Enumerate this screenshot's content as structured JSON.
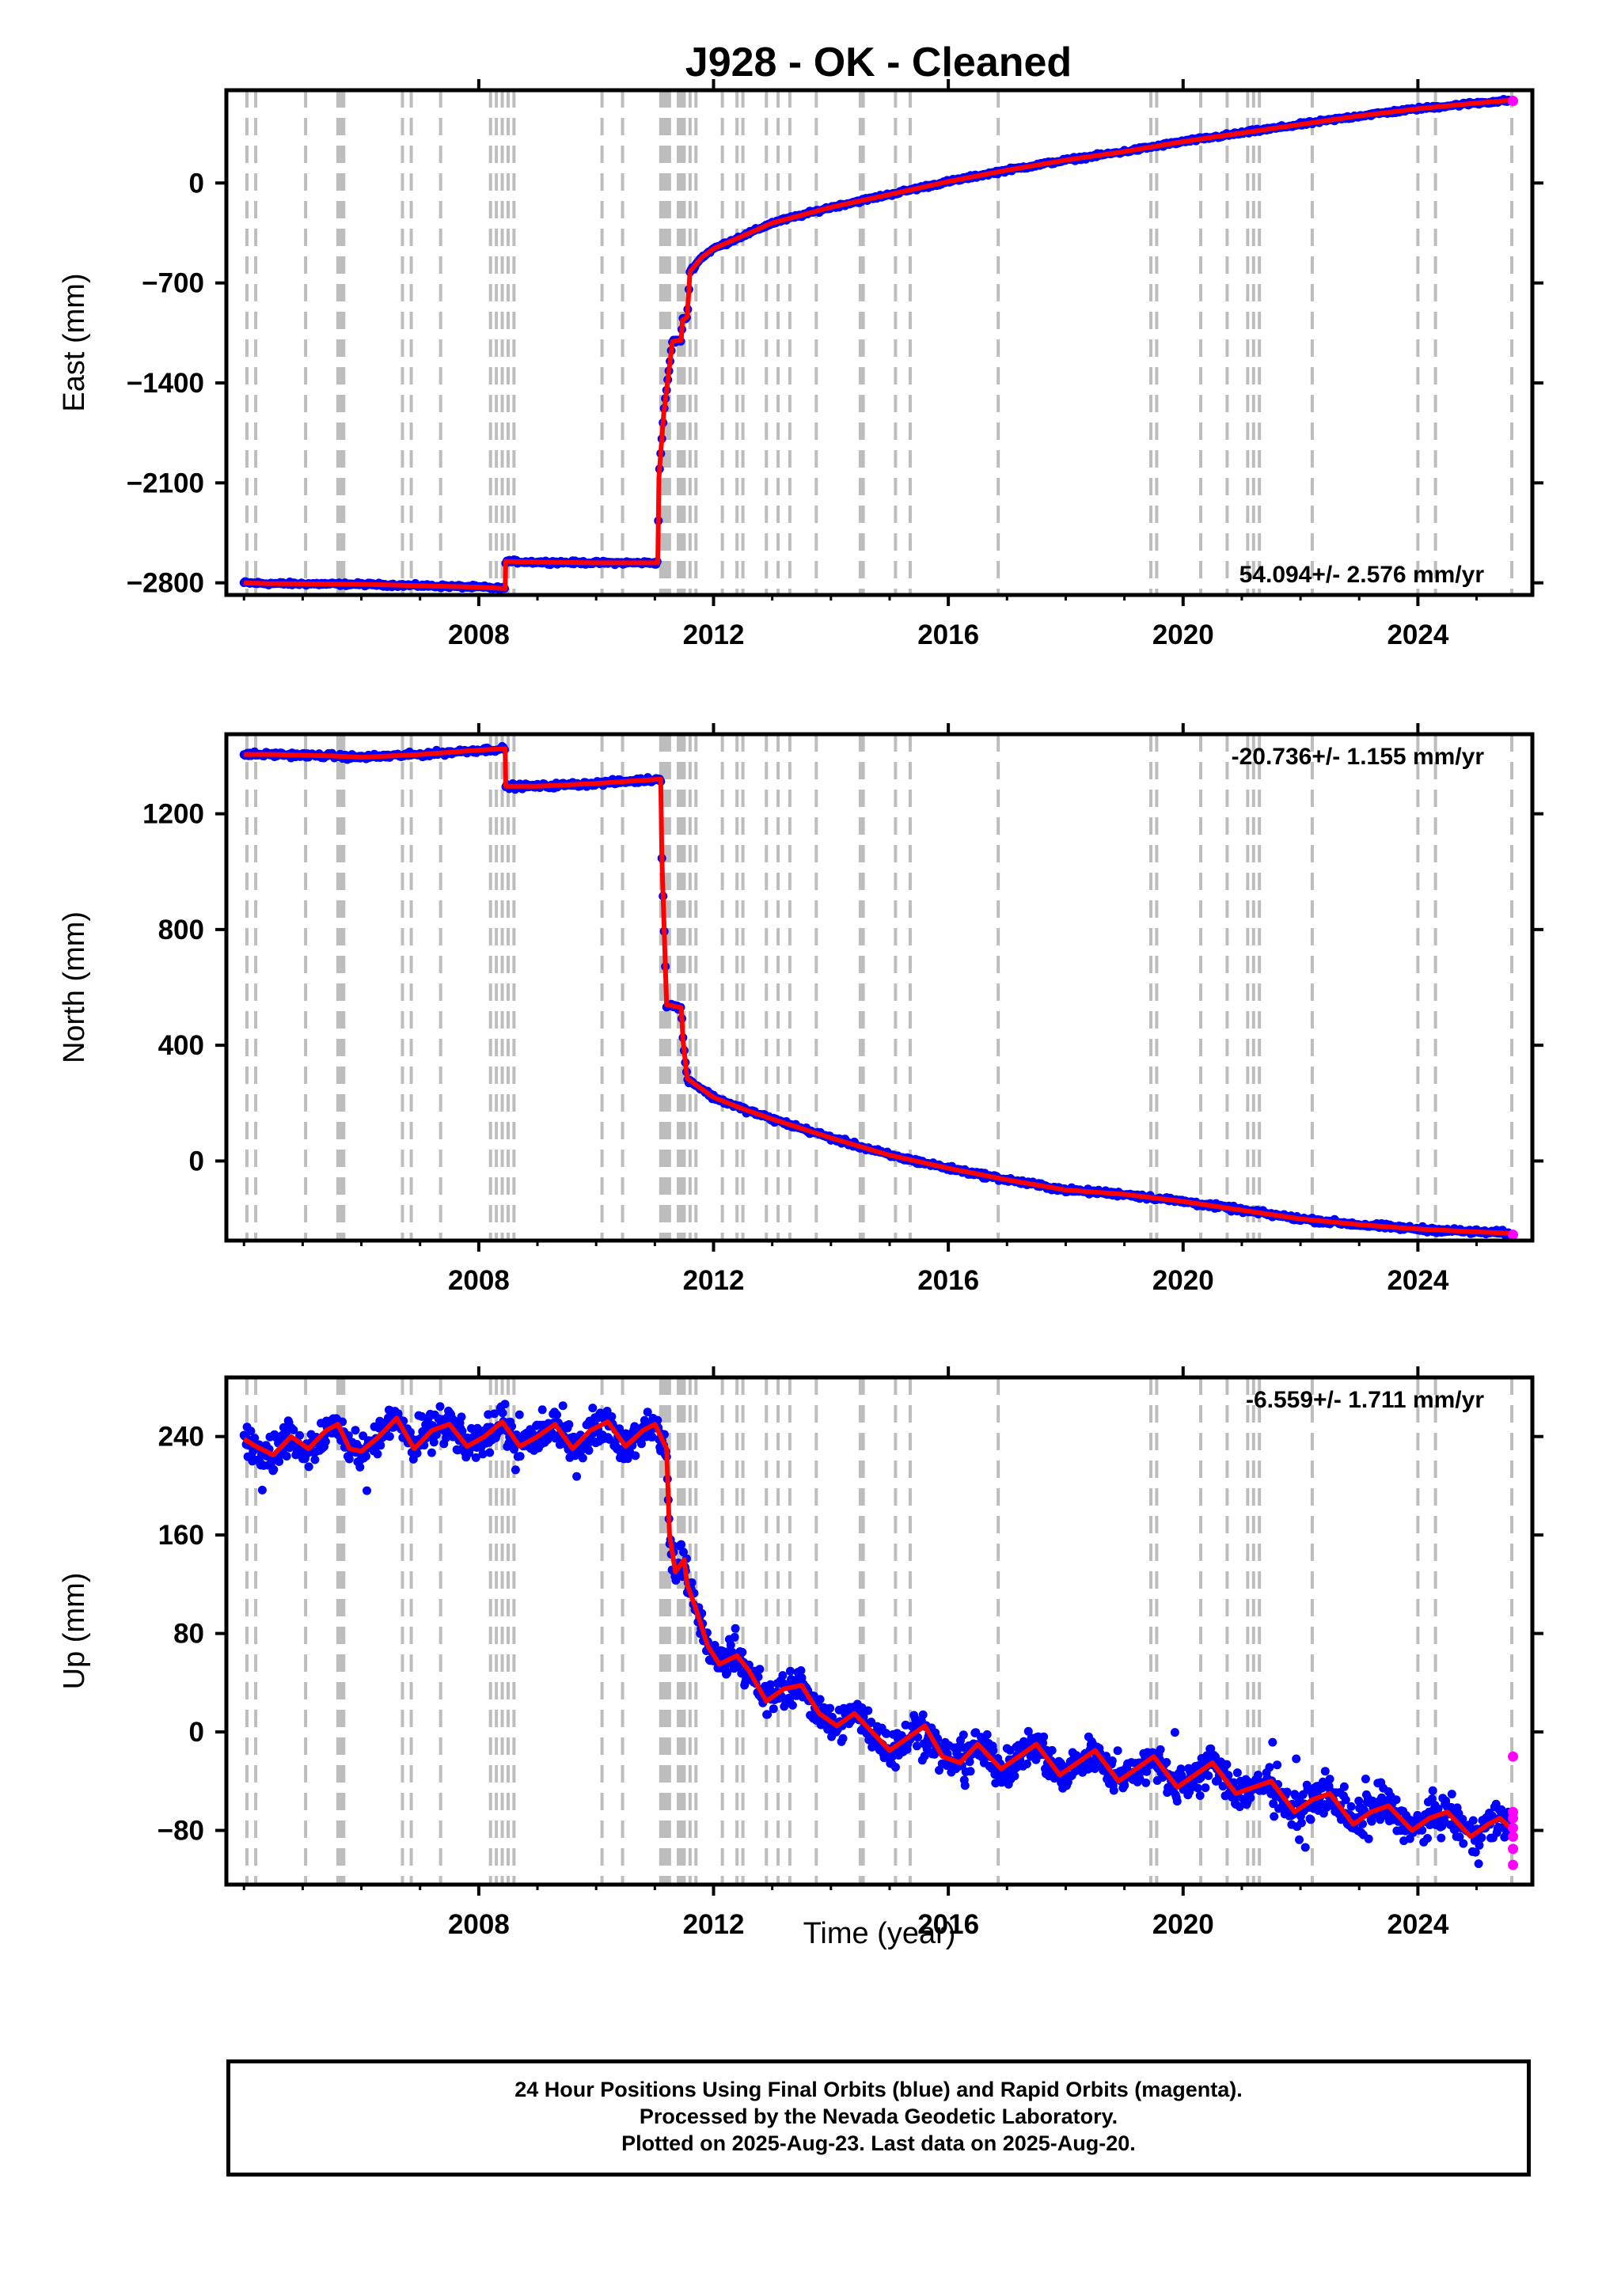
{
  "title": "J928  - OK - Cleaned",
  "colors": {
    "final": "#0000ff",
    "rapid": "#ff00ff",
    "model": "#ff0000",
    "event_lines": "#bdbdbd",
    "axis": "#000000"
  },
  "x_axis": {
    "label": "Time (year)",
    "ticks": [
      2008,
      2012,
      2016,
      2020,
      2024
    ],
    "range": [
      2003.7,
      2025.95
    ]
  },
  "event_lines": [
    2004.05,
    2004.2,
    2005.05,
    2005.6,
    2005.65,
    2005.7,
    2006.7,
    2006.85,
    2007.35,
    2008.2,
    2008.3,
    2008.4,
    2008.5,
    2008.6,
    2010.1,
    2010.45,
    2011.1,
    2011.15,
    2011.2,
    2011.25,
    2011.4,
    2011.45,
    2011.5,
    2011.6,
    2011.7,
    2012.15,
    2012.4,
    2012.5,
    2012.9,
    2013.1,
    2013.3,
    2013.75,
    2014.5,
    2014.55,
    2015.1,
    2015.35,
    2016.85,
    2019.45,
    2019.55,
    2020.3,
    2020.75,
    2021.1,
    2021.2,
    2021.3,
    2022.2,
    2024.0,
    2024.3,
    2025.6
  ],
  "footer": {
    "line1": "24 Hour Positions Using Final Orbits (blue) and Rapid Orbits (magenta).",
    "line2": "Processed by the Nevada Geodetic Laboratory.",
    "line3": "Plotted on 2025-Aug-23. Last data on 2025-Aug-20."
  },
  "chart_data": [
    {
      "type": "scatter",
      "ylabel": "East (mm)",
      "yticks": [
        -2800,
        -2100,
        -1400,
        -700,
        0
      ],
      "ylim": [
        -2885,
        650
      ],
      "rate_label": "54.094+/- 2.576 mm/yr",
      "model_points": [
        [
          2004.0,
          -2800
        ],
        [
          2004.4,
          -2805
        ],
        [
          2006.0,
          -2810
        ],
        [
          2008.0,
          -2830
        ],
        [
          2008.45,
          -2840
        ],
        [
          2008.46,
          -2650
        ],
        [
          2009.0,
          -2655
        ],
        [
          2010.0,
          -2660
        ],
        [
          2011.05,
          -2660
        ],
        [
          2011.07,
          -2060
        ],
        [
          2011.15,
          -1620
        ],
        [
          2011.3,
          -1110
        ],
        [
          2011.45,
          -1100
        ],
        [
          2011.47,
          -960
        ],
        [
          2011.55,
          -940
        ],
        [
          2011.6,
          -620
        ],
        [
          2011.8,
          -520
        ],
        [
          2012.0,
          -460
        ],
        [
          2012.5,
          -370
        ],
        [
          2013.0,
          -280
        ],
        [
          2014.0,
          -170
        ],
        [
          2015.0,
          -80
        ],
        [
          2016.0,
          10
        ],
        [
          2017.0,
          90
        ],
        [
          2018.0,
          160
        ],
        [
          2019.0,
          220
        ],
        [
          2020.0,
          290
        ],
        [
          2021.0,
          350
        ],
        [
          2022.0,
          410
        ],
        [
          2023.0,
          470
        ],
        [
          2024.0,
          520
        ],
        [
          2025.0,
          560
        ],
        [
          2025.62,
          580
        ]
      ],
      "noise_mm": 8,
      "rapid_points": [
        [
          2025.62,
          575
        ]
      ]
    },
    {
      "type": "scatter",
      "ylabel": "North (mm)",
      "yticks": [
        0,
        400,
        800,
        1200
      ],
      "ylim": [
        -275,
        1475
      ],
      "rate_label": "-20.736+/- 1.155 mm/yr",
      "model_points": [
        [
          2004.0,
          1405
        ],
        [
          2004.5,
          1405
        ],
        [
          2005.5,
          1400
        ],
        [
          2006.0,
          1395
        ],
        [
          2007.0,
          1405
        ],
        [
          2008.0,
          1420
        ],
        [
          2008.45,
          1425
        ],
        [
          2008.46,
          1295
        ],
        [
          2009.0,
          1295
        ],
        [
          2010.0,
          1305
        ],
        [
          2011.1,
          1320
        ],
        [
          2011.12,
          1050
        ],
        [
          2011.2,
          540
        ],
        [
          2011.45,
          530
        ],
        [
          2011.48,
          420
        ],
        [
          2011.55,
          285
        ],
        [
          2012.0,
          220
        ],
        [
          2012.5,
          180
        ],
        [
          2013.0,
          145
        ],
        [
          2014.0,
          80
        ],
        [
          2015.0,
          20
        ],
        [
          2016.0,
          -25
        ],
        [
          2017.0,
          -65
        ],
        [
          2018.0,
          -100
        ],
        [
          2019.0,
          -115
        ],
        [
          2020.0,
          -140
        ],
        [
          2021.0,
          -170
        ],
        [
          2022.0,
          -200
        ],
        [
          2023.0,
          -220
        ],
        [
          2024.0,
          -235
        ],
        [
          2025.0,
          -245
        ],
        [
          2025.62,
          -250
        ]
      ],
      "noise_mm": 6,
      "rapid_points": [
        [
          2025.62,
          -255
        ]
      ]
    },
    {
      "type": "scatter",
      "ylabel": "Up (mm)",
      "yticks": [
        -80,
        0,
        80,
        160,
        240
      ],
      "ylim": [
        -124,
        288
      ],
      "rate_label": "-6.559+/- 1.711 mm/yr",
      "model_points": [
        [
          2004.0,
          238
        ],
        [
          2004.2,
          232
        ],
        [
          2004.5,
          225
        ],
        [
          2004.8,
          240
        ],
        [
          2005.1,
          230
        ],
        [
          2005.4,
          245
        ],
        [
          2005.6,
          250
        ],
        [
          2005.8,
          230
        ],
        [
          2006.0,
          228
        ],
        [
          2006.3,
          240
        ],
        [
          2006.6,
          255
        ],
        [
          2006.9,
          230
        ],
        [
          2007.2,
          245
        ],
        [
          2007.5,
          250
        ],
        [
          2007.8,
          232
        ],
        [
          2008.1,
          240
        ],
        [
          2008.4,
          252
        ],
        [
          2008.7,
          232
        ],
        [
          2009.0,
          240
        ],
        [
          2009.3,
          250
        ],
        [
          2009.6,
          230
        ],
        [
          2009.9,
          245
        ],
        [
          2010.2,
          252
        ],
        [
          2010.5,
          232
        ],
        [
          2010.8,
          245
        ],
        [
          2011.0,
          250
        ],
        [
          2011.2,
          230
        ],
        [
          2011.25,
          160
        ],
        [
          2011.35,
          130
        ],
        [
          2011.5,
          140
        ],
        [
          2011.55,
          120
        ],
        [
          2011.7,
          100
        ],
        [
          2011.9,
          70
        ],
        [
          2012.1,
          55
        ],
        [
          2012.4,
          62
        ],
        [
          2012.6,
          50
        ],
        [
          2012.9,
          25
        ],
        [
          2013.2,
          35
        ],
        [
          2013.5,
          38
        ],
        [
          2013.8,
          15
        ],
        [
          2014.1,
          5
        ],
        [
          2014.4,
          15
        ],
        [
          2014.7,
          0
        ],
        [
          2015.0,
          -15
        ],
        [
          2015.3,
          -5
        ],
        [
          2015.6,
          5
        ],
        [
          2015.9,
          -20
        ],
        [
          2016.2,
          -25
        ],
        [
          2016.5,
          -10
        ],
        [
          2016.9,
          -30
        ],
        [
          2017.2,
          -20
        ],
        [
          2017.5,
          -10
        ],
        [
          2017.9,
          -35
        ],
        [
          2018.2,
          -25
        ],
        [
          2018.5,
          -15
        ],
        [
          2018.9,
          -40
        ],
        [
          2019.2,
          -30
        ],
        [
          2019.5,
          -20
        ],
        [
          2019.9,
          -45
        ],
        [
          2020.2,
          -35
        ],
        [
          2020.5,
          -25
        ],
        [
          2020.9,
          -50
        ],
        [
          2021.2,
          -45
        ],
        [
          2021.5,
          -40
        ],
        [
          2021.9,
          -65
        ],
        [
          2022.2,
          -55
        ],
        [
          2022.5,
          -50
        ],
        [
          2022.9,
          -75
        ],
        [
          2023.2,
          -65
        ],
        [
          2023.5,
          -60
        ],
        [
          2023.9,
          -80
        ],
        [
          2024.2,
          -70
        ],
        [
          2024.5,
          -65
        ],
        [
          2024.9,
          -85
        ],
        [
          2025.2,
          -75
        ],
        [
          2025.4,
          -70
        ],
        [
          2025.62,
          -80
        ]
      ],
      "noise_mm": 10,
      "rapid_points": [
        [
          2025.62,
          -20
        ],
        [
          2025.62,
          -65
        ],
        [
          2025.62,
          -70
        ],
        [
          2025.62,
          -78
        ],
        [
          2025.62,
          -85
        ],
        [
          2025.62,
          -95
        ],
        [
          2025.62,
          -108
        ]
      ]
    }
  ]
}
